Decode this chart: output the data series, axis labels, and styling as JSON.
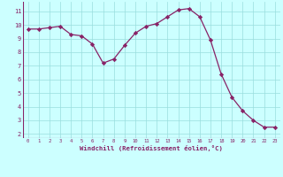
{
  "x": [
    0,
    1,
    2,
    3,
    4,
    5,
    6,
    7,
    8,
    9,
    10,
    11,
    12,
    13,
    14,
    15,
    16,
    17,
    18,
    19,
    20,
    21,
    22,
    23
  ],
  "y": [
    9.7,
    9.7,
    9.8,
    9.9,
    9.3,
    9.2,
    8.6,
    7.2,
    7.5,
    8.5,
    9.4,
    9.9,
    10.1,
    10.6,
    11.1,
    11.2,
    10.6,
    8.9,
    6.4,
    4.7,
    3.7,
    3.0,
    2.5,
    2.5
  ],
  "line_color": "#882266",
  "marker": "D",
  "marker_size": 2.2,
  "bg_color": "#ccffff",
  "grid_color": "#99dddd",
  "xlabel": "Windchill (Refroidissement éolien,°C)",
  "tick_color": "#882266",
  "xlim": [
    -0.5,
    23.5
  ],
  "ylim": [
    1.7,
    11.7
  ],
  "yticks": [
    2,
    3,
    4,
    5,
    6,
    7,
    8,
    9,
    10,
    11
  ],
  "xticks": [
    0,
    1,
    2,
    3,
    4,
    5,
    6,
    7,
    8,
    9,
    10,
    11,
    12,
    13,
    14,
    15,
    16,
    17,
    18,
    19,
    20,
    21,
    22,
    23
  ]
}
